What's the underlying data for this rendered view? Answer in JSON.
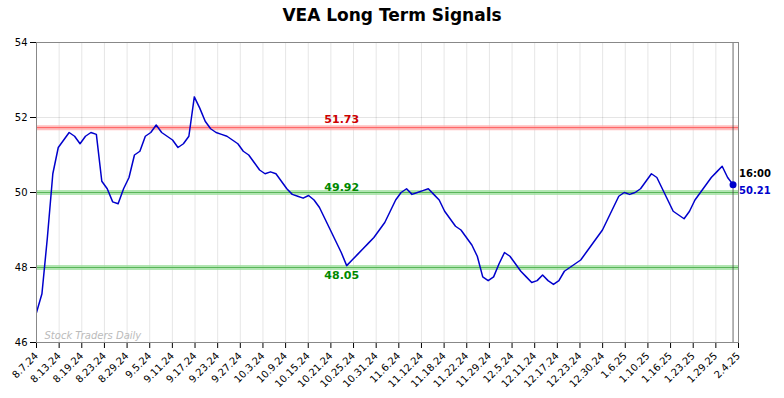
{
  "chart_data": {
    "type": "line",
    "title": "VEA Long Term Signals",
    "color": "#0000cc",
    "values": [
      46.8,
      47.3,
      48.8,
      50.5,
      51.2,
      51.4,
      51.6,
      51.5,
      51.3,
      51.5,
      51.6,
      51.55,
      50.3,
      50.1,
      49.75,
      49.7,
      50.1,
      50.4,
      51.0,
      51.1,
      51.5,
      51.6,
      51.8,
      51.6,
      51.5,
      51.4,
      51.2,
      51.3,
      51.5,
      52.55,
      52.25,
      51.9,
      51.7,
      51.6,
      51.55,
      51.5,
      51.4,
      51.3,
      51.1,
      51.0,
      50.8,
      50.6,
      50.5,
      50.55,
      50.5,
      50.3,
      50.1,
      49.95,
      49.9,
      49.85,
      49.92,
      49.8,
      49.6,
      49.3,
      49.0,
      48.7,
      48.4,
      48.05,
      48.2,
      48.35,
      48.5,
      48.65,
      48.8,
      49.0,
      49.2,
      49.5,
      49.8,
      50.0,
      50.1,
      49.95,
      50.0,
      50.05,
      50.1,
      49.95,
      49.8,
      49.5,
      49.3,
      49.1,
      49.0,
      48.8,
      48.6,
      48.3,
      47.75,
      47.65,
      47.75,
      48.1,
      48.4,
      48.3,
      48.1,
      47.9,
      47.75,
      47.6,
      47.65,
      47.8,
      47.65,
      47.55,
      47.65,
      47.9,
      48.0,
      48.1,
      48.2,
      48.4,
      48.6,
      48.8,
      49.0,
      49.3,
      49.6,
      49.9,
      50.0,
      49.95,
      50.0,
      50.1,
      50.3,
      50.5,
      50.4,
      50.1,
      49.8,
      49.5,
      49.4,
      49.3,
      49.5,
      49.8,
      50.0,
      50.2,
      50.4,
      50.55,
      50.7,
      50.4,
      50.21
    ],
    "xlim": [
      0,
      129
    ],
    "xticks": [
      {
        "value": 0,
        "label": "8.7.24"
      },
      {
        "value": 4.1613,
        "label": "8.13.24"
      },
      {
        "value": 8.3226,
        "label": "8.19.24"
      },
      {
        "value": 12.4839,
        "label": "8.23.24"
      },
      {
        "value": 16.6452,
        "label": "8.29.24"
      },
      {
        "value": 20.8065,
        "label": "9.5.24"
      },
      {
        "value": 24.9677,
        "label": "9.11.24"
      },
      {
        "value": 29.129,
        "label": "9.17.24"
      },
      {
        "value": 33.2903,
        "label": "9.23.24"
      },
      {
        "value": 37.4516,
        "label": "9.27.24"
      },
      {
        "value": 41.6129,
        "label": "10.3.24"
      },
      {
        "value": 45.7742,
        "label": "10.9.24"
      },
      {
        "value": 49.9355,
        "label": "10.15.24"
      },
      {
        "value": 54.0968,
        "label": "10.21.24"
      },
      {
        "value": 58.2581,
        "label": "10.25.24"
      },
      {
        "value": 62.4194,
        "label": "10.31.24"
      },
      {
        "value": 66.5806,
        "label": "11.6.24"
      },
      {
        "value": 70.7419,
        "label": "11.12.24"
      },
      {
        "value": 74.9032,
        "label": "11.18.24"
      },
      {
        "value": 79.0645,
        "label": "11.22.24"
      },
      {
        "value": 83.2258,
        "label": "11.29.24"
      },
      {
        "value": 87.3871,
        "label": "12.5.24"
      },
      {
        "value": 91.5484,
        "label": "12.11.24"
      },
      {
        "value": 95.7097,
        "label": "12.17.24"
      },
      {
        "value": 99.871,
        "label": "12.23.24"
      },
      {
        "value": 104.0323,
        "label": "12.30.24"
      },
      {
        "value": 108.1935,
        "label": "1.6.25"
      },
      {
        "value": 112.3548,
        "label": "1.10.25"
      },
      {
        "value": 116.5161,
        "label": "1.16.25"
      },
      {
        "value": 120.6774,
        "label": "1.23.25"
      },
      {
        "value": 124.8387,
        "label": "1.29.25"
      },
      {
        "value": 129,
        "label": "2.4.25"
      }
    ],
    "ylim": [
      46,
      54
    ],
    "yticks": [
      46,
      48,
      50,
      52,
      54
    ],
    "grid": true,
    "reference_lines": [
      {
        "y": 51.73,
        "color": "#ff4444",
        "fill": "#ffaaaa"
      },
      {
        "y": 50.0,
        "color": "#44aa44",
        "fill": "#99dd99"
      },
      {
        "y": 48.0,
        "color": "#44aa44",
        "fill": "#99dd99"
      }
    ],
    "annotations": [
      {
        "text": "51.73",
        "y": 51.73,
        "color": "#cc0000",
        "position": "above"
      },
      {
        "text": "49.92",
        "y": 49.92,
        "color": "#008800",
        "position": "above"
      },
      {
        "text": "48.05",
        "y": 48.05,
        "color": "#008800",
        "position": "below"
      }
    ],
    "end_label": {
      "time": "16:00",
      "time_color": "#000000",
      "price": "50.21",
      "price_color": "#0000cc"
    },
    "end_marker": {
      "color": "#0000cc",
      "line_color": "#444444"
    },
    "watermark": {
      "text": "Stock Traders Daily",
      "color": "#bbbbbb"
    }
  }
}
